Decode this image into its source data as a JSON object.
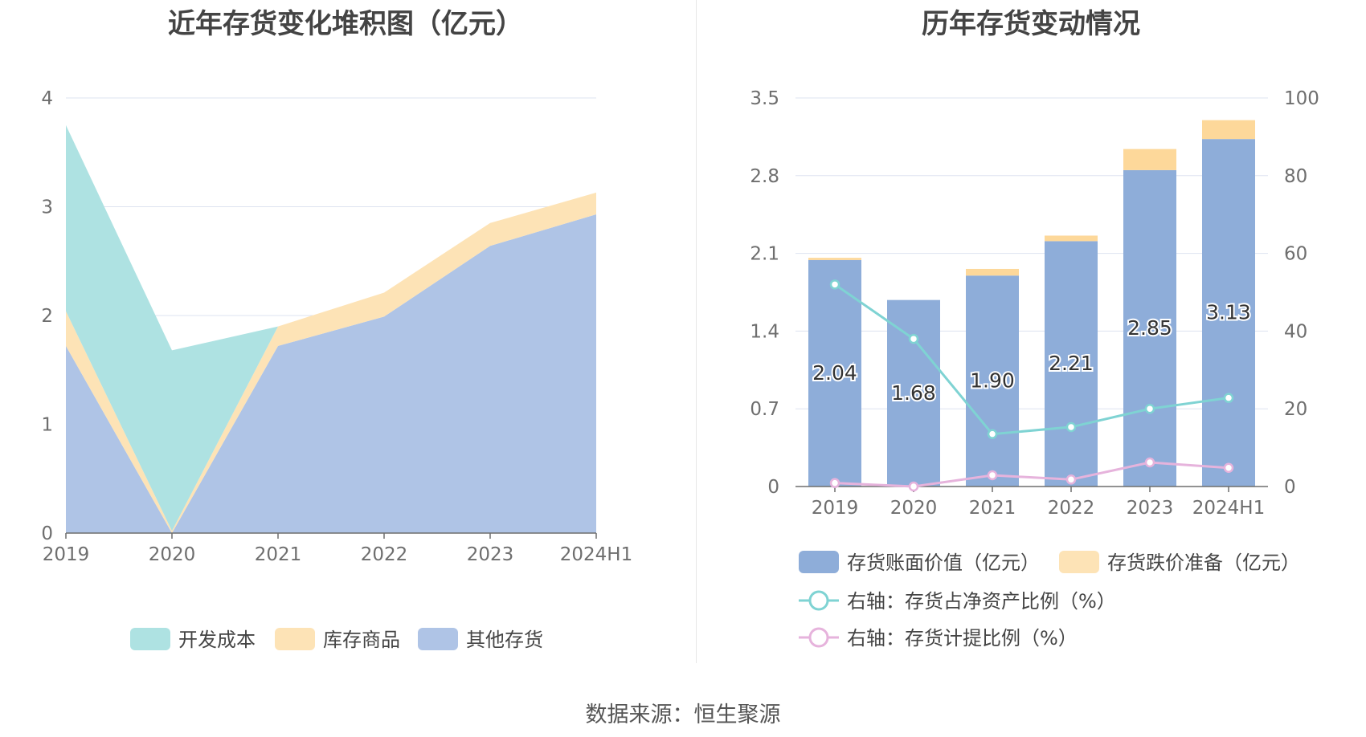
{
  "left_title": "近年存货变化堆积图（亿元）",
  "right_title": "历年存货变动情况",
  "source": "数据来源：恒生聚源",
  "colors": {
    "dev": "#aee2e2",
    "goods": "#fde3b6",
    "other": "#afc4e6",
    "bar_main": "#8eadd9",
    "bar_top": "#fdd89a",
    "line_ratio": "#7fd3d3",
    "line_provision": "#e6b3dc",
    "grid": "#dde3f0",
    "axis": "#6e6e6e"
  },
  "chart_data": [
    {
      "type": "area",
      "stacked": true,
      "title": "近年存货变化堆积图（亿元）",
      "categories": [
        "2019",
        "2020",
        "2021",
        "2022",
        "2023",
        "2024H1"
      ],
      "ylim": [
        0,
        4
      ],
      "yticks": [
        "0",
        "1",
        "2",
        "3",
        "4"
      ],
      "series": [
        {
          "name": "其他存货",
          "values": [
            1.72,
            0.0,
            1.72,
            1.99,
            2.64,
            2.93
          ]
        },
        {
          "name": "库存商品",
          "values": [
            0.32,
            0.02,
            0.18,
            0.22,
            0.21,
            0.2
          ]
        },
        {
          "name": "开发成本",
          "values": [
            1.71,
            1.66,
            0.0,
            0.0,
            0.0,
            0.0
          ]
        }
      ],
      "legend": [
        "开发成本",
        "库存商品",
        "其他存货"
      ],
      "legend_position": "bottom"
    },
    {
      "type": "bar",
      "stacked": true,
      "title": "历年存货变动情况",
      "categories": [
        "2019",
        "2020",
        "2021",
        "2022",
        "2023",
        "2024H1"
      ],
      "ylim": [
        0,
        3.5
      ],
      "yticks": [
        "0",
        "0.7",
        "1.4",
        "2.1",
        "2.8",
        "3.5"
      ],
      "y2lim": [
        0,
        100
      ],
      "y2ticks": [
        "0",
        "20",
        "40",
        "60",
        "80",
        "100"
      ],
      "series": [
        {
          "name": "存货账面价值（亿元）",
          "values": [
            2.04,
            1.68,
            1.9,
            2.21,
            2.85,
            3.13
          ],
          "labels": [
            "2.04",
            "1.68",
            "1.90",
            "2.21",
            "2.85",
            "3.13"
          ]
        },
        {
          "name": "存货跌价准备（亿元）",
          "values": [
            0.02,
            0.0,
            0.06,
            0.05,
            0.19,
            0.17
          ]
        },
        {
          "name": "右轴：存货占净资产比例（%）",
          "axis": "right",
          "type": "line",
          "values": [
            52.0,
            38.0,
            13.5,
            15.3,
            20.0,
            22.8
          ]
        },
        {
          "name": "右轴：存货计提比例（%）",
          "axis": "right",
          "type": "line",
          "values": [
            0.9,
            0.0,
            2.9,
            1.8,
            6.2,
            4.8
          ]
        }
      ],
      "legend": [
        "存货账面价值（亿元）",
        "存货跌价准备（亿元）",
        "右轴：存货占净资产比例（%）",
        "右轴：存货计提比例（%）"
      ],
      "legend_position": "bottom"
    }
  ]
}
